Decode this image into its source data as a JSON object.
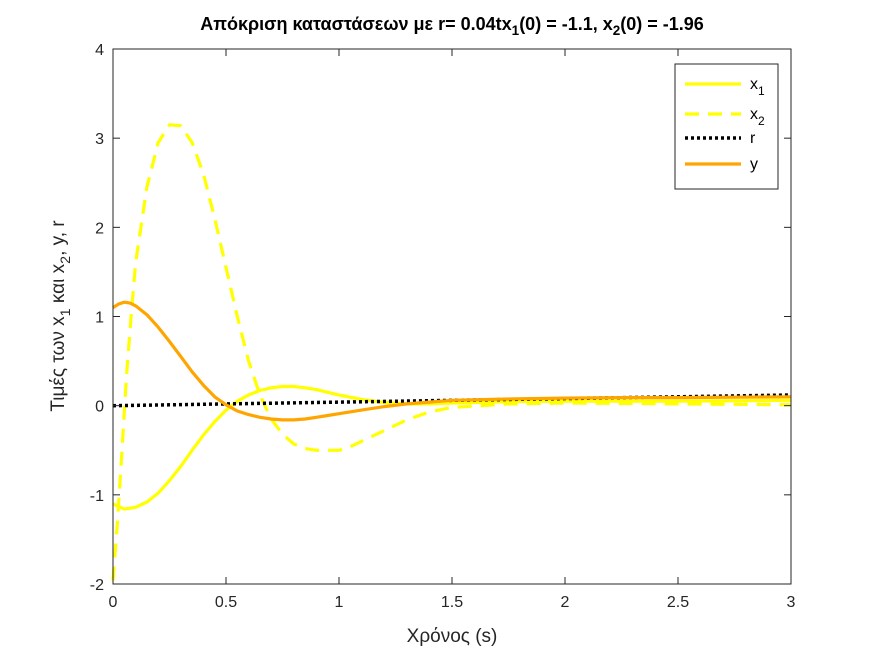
{
  "chart_data": {
    "type": "line",
    "title": {
      "parts": [
        {
          "text": "Απόκριση καταστάσεων με r= 0.04tx"
        },
        {
          "text": "1",
          "sub": true
        },
        {
          "text": "(0) = -1.1, x"
        },
        {
          "text": "2",
          "sub": true
        },
        {
          "text": "(0) = -1.96"
        }
      ]
    },
    "xlabel": "Χρόνος (s)",
    "ylabel": {
      "parts": [
        {
          "text": "Τιμές των x"
        },
        {
          "text": "1",
          "sub": true
        },
        {
          "text": " και x"
        },
        {
          "text": "2",
          "sub": true
        },
        {
          "text": ", y, r"
        }
      ]
    },
    "xlim": [
      0,
      3
    ],
    "ylim": [
      -2,
      4
    ],
    "xticks": [
      0,
      0.5,
      1,
      1.5,
      2,
      2.5,
      3
    ],
    "xtick_labels": [
      "0",
      "0.5",
      "1",
      "1.5",
      "2",
      "2.5",
      "3"
    ],
    "yticks": [
      -2,
      -1,
      0,
      1,
      2,
      3,
      4
    ],
    "ytick_labels": [
      "-2",
      "-1",
      "0",
      "1",
      "2",
      "3",
      "4"
    ],
    "grid": false,
    "legend_position": "top-right",
    "series": [
      {
        "name": "x",
        "name_sub": "1",
        "color": "#FFFF00",
        "style": "solid",
        "x": [
          0,
          0.05,
          0.1,
          0.15,
          0.2,
          0.25,
          0.3,
          0.35,
          0.4,
          0.45,
          0.5,
          0.55,
          0.6,
          0.65,
          0.7,
          0.75,
          0.8,
          0.85,
          0.9,
          0.95,
          1.0,
          1.1,
          1.2,
          1.3,
          1.4,
          1.5,
          1.75,
          2.0,
          2.25,
          2.5,
          2.75,
          3.0
        ],
        "y": [
          -1.1,
          -1.16,
          -1.14,
          -1.08,
          -0.98,
          -0.84,
          -0.68,
          -0.5,
          -0.33,
          -0.18,
          -0.05,
          0.05,
          0.12,
          0.17,
          0.2,
          0.215,
          0.215,
          0.2,
          0.18,
          0.15,
          0.12,
          0.07,
          0.035,
          0.02,
          0.02,
          0.03,
          0.045,
          0.05,
          0.05,
          0.05,
          0.055,
          0.06
        ]
      },
      {
        "name": "x",
        "name_sub": "2",
        "color": "#FFFF00",
        "style": "dashed",
        "x": [
          0,
          0.02,
          0.04,
          0.06,
          0.08,
          0.1,
          0.15,
          0.2,
          0.25,
          0.3,
          0.35,
          0.4,
          0.45,
          0.5,
          0.55,
          0.6,
          0.65,
          0.7,
          0.75,
          0.8,
          0.85,
          0.9,
          0.95,
          1.0,
          1.05,
          1.1,
          1.2,
          1.3,
          1.4,
          1.5,
          1.75,
          2.0,
          2.25,
          2.5,
          2.75,
          3.0
        ],
        "y": [
          -1.96,
          -1.3,
          -0.5,
          0.35,
          1.0,
          1.6,
          2.45,
          2.95,
          3.15,
          3.14,
          2.95,
          2.6,
          2.1,
          1.55,
          1.0,
          0.5,
          0.12,
          -0.15,
          -0.32,
          -0.43,
          -0.48,
          -0.5,
          -0.5,
          -0.5,
          -0.46,
          -0.4,
          -0.28,
          -0.16,
          -0.07,
          -0.02,
          0.02,
          0.03,
          0.025,
          0.02,
          0.015,
          0.01
        ]
      },
      {
        "name": "r",
        "color": "#000000",
        "style": "dotted",
        "x": [
          0,
          3
        ],
        "y": [
          0,
          0.12
        ]
      },
      {
        "name": "y",
        "color": "#FFA500",
        "style": "solid",
        "x": [
          0,
          0.025,
          0.05,
          0.075,
          0.1,
          0.15,
          0.2,
          0.25,
          0.3,
          0.35,
          0.4,
          0.45,
          0.5,
          0.55,
          0.6,
          0.65,
          0.7,
          0.75,
          0.8,
          0.85,
          0.9,
          0.95,
          1.0,
          1.1,
          1.2,
          1.3,
          1.4,
          1.5,
          1.75,
          2.0,
          2.25,
          2.5,
          2.75,
          3.0
        ],
        "y": [
          1.1,
          1.14,
          1.16,
          1.15,
          1.12,
          1.02,
          0.88,
          0.72,
          0.55,
          0.38,
          0.23,
          0.1,
          0.01,
          -0.06,
          -0.1,
          -0.13,
          -0.15,
          -0.16,
          -0.16,
          -0.15,
          -0.13,
          -0.11,
          -0.09,
          -0.05,
          -0.01,
          0.02,
          0.04,
          0.06,
          0.075,
          0.085,
          0.09,
          0.09,
          0.095,
          0.1
        ]
      }
    ]
  }
}
